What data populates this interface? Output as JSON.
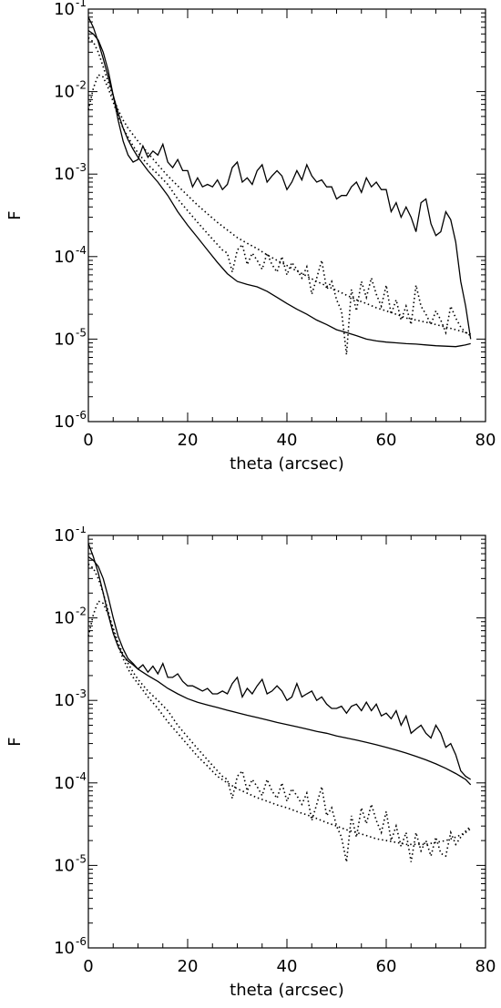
{
  "chart_data": [
    {
      "type": "line",
      "title": "",
      "xlabel": "theta (arcsec)",
      "ylabel": "F",
      "xlim": [
        0,
        80
      ],
      "ylim": [
        1e-06,
        0.1
      ],
      "yscale": "log",
      "x_ticks": [
        "0",
        "20",
        "40",
        "60",
        "80"
      ],
      "y_ticks": [
        {
          "base": "10",
          "exp": "-6"
        },
        {
          "base": "10",
          "exp": "-5"
        },
        {
          "base": "10",
          "exp": "-4"
        },
        {
          "base": "10",
          "exp": "-3"
        },
        {
          "base": "10",
          "exp": "-2"
        },
        {
          "base": "10",
          "exp": "-1"
        }
      ],
      "grid": false,
      "series": [
        {
          "style": "solid",
          "x": [
            0,
            1,
            2,
            3,
            4,
            5,
            6,
            7,
            8,
            9,
            10,
            11,
            12,
            13,
            14,
            15,
            16,
            17,
            18,
            19,
            20,
            21,
            22,
            23,
            24,
            25,
            26,
            27,
            28,
            29,
            30,
            31,
            32,
            33,
            34,
            35,
            36,
            37,
            38,
            39,
            40,
            41,
            42,
            43,
            44,
            45,
            46,
            47,
            48,
            49,
            50,
            51,
            52,
            53,
            54,
            55,
            56,
            57,
            58,
            59,
            60,
            61,
            62,
            63,
            64,
            65,
            66,
            67,
            68,
            69,
            70,
            71,
            72,
            73,
            74,
            75,
            76,
            77
          ],
          "y": [
            0.055,
            0.05,
            0.042,
            0.03,
            0.018,
            0.009,
            0.0045,
            0.0025,
            0.0017,
            0.0014,
            0.0015,
            0.0022,
            0.0016,
            0.0019,
            0.0017,
            0.0023,
            0.0014,
            0.0012,
            0.0015,
            0.0011,
            0.0011,
            0.0007,
            0.0009,
            0.0007,
            0.00075,
            0.0007,
            0.00085,
            0.00065,
            0.00075,
            0.0012,
            0.0014,
            0.0008,
            0.0009,
            0.00075,
            0.0011,
            0.0013,
            0.0008,
            0.00095,
            0.0011,
            0.00095,
            0.00065,
            0.0008,
            0.0011,
            0.00085,
            0.0013,
            0.00095,
            0.0008,
            0.00085,
            0.0007,
            0.0007,
            0.0005,
            0.00055,
            0.00055,
            0.0007,
            0.0008,
            0.0006,
            0.0009,
            0.0007,
            0.0008,
            0.00065,
            0.00065,
            0.00035,
            0.00045,
            0.0003,
            0.0004,
            0.0003,
            0.0002,
            0.00045,
            0.0005,
            0.00025,
            0.00018,
            0.0002,
            0.00035,
            0.00028,
            0.00015,
            5e-05,
            2.5e-05,
            1e-05
          ]
        },
        {
          "style": "solid",
          "x": [
            0,
            1,
            2,
            3,
            4,
            5,
            6,
            7,
            8,
            9,
            10,
            12,
            14,
            16,
            18,
            20,
            22,
            24,
            26,
            28,
            30,
            32,
            34,
            36,
            38,
            40,
            42,
            44,
            46,
            48,
            50,
            52,
            54,
            56,
            58,
            60,
            62,
            64,
            66,
            68,
            70,
            72,
            74,
            76,
            77
          ],
          "y": [
            0.08,
            0.06,
            0.04,
            0.025,
            0.015,
            0.009,
            0.0055,
            0.0036,
            0.0026,
            0.002,
            0.0016,
            0.0011,
            0.0008,
            0.00055,
            0.00035,
            0.00024,
            0.00017,
            0.00012,
            8.5e-05,
            6.2e-05,
            5e-05,
            4.6e-05,
            4.3e-05,
            3.8e-05,
            3.2e-05,
            2.7e-05,
            2.3e-05,
            2e-05,
            1.7e-05,
            1.5e-05,
            1.3e-05,
            1.2e-05,
            1.1e-05,
            1e-05,
            9.5e-06,
            9.2e-06,
            9e-06,
            8.8e-06,
            8.7e-06,
            8.5e-06,
            8.3e-06,
            8.2e-06,
            8.1e-06,
            8.5e-06,
            8.8e-06
          ]
        },
        {
          "style": "dotted",
          "x": [
            0,
            1,
            2,
            3,
            4,
            5,
            6,
            7,
            8,
            9,
            10,
            12,
            14,
            16,
            18,
            20,
            22,
            24,
            26,
            27,
            28,
            29,
            30,
            31,
            32,
            33,
            34,
            35,
            36,
            37,
            38,
            39,
            40,
            41,
            42,
            43,
            44,
            45,
            46,
            47,
            48,
            49,
            50,
            51,
            52,
            53,
            54,
            55,
            56,
            57,
            58,
            59,
            60,
            61,
            62,
            63,
            64,
            65,
            66,
            67,
            68,
            69,
            70,
            71,
            72,
            73,
            74,
            75,
            76,
            77
          ],
          "y": [
            0.006,
            0.011,
            0.016,
            0.015,
            0.011,
            0.0075,
            0.005,
            0.0036,
            0.0028,
            0.0022,
            0.0018,
            0.0013,
            0.001,
            0.00075,
            0.0005,
            0.00036,
            0.00026,
            0.00019,
            0.00014,
            0.00012,
            0.00011,
            6.5e-05,
            0.00012,
            0.00014,
            8e-05,
            0.00011,
            9e-05,
            7e-05,
            0.00011,
            8e-05,
            6.5e-05,
            0.0001,
            6e-05,
            8.5e-05,
            7e-05,
            5.5e-05,
            7.5e-05,
            3.5e-05,
            5.5e-05,
            9e-05,
            4e-05,
            5e-05,
            3e-05,
            2.2e-05,
            6.5e-06,
            4e-05,
            2.2e-05,
            5e-05,
            3.2e-05,
            5.5e-05,
            3.5e-05,
            2.5e-05,
            4.5e-05,
            2e-05,
            3e-05,
            1.7e-05,
            2.5e-05,
            1.5e-05,
            4.5e-05,
            2.5e-05,
            2e-05,
            1.5e-05,
            2.2e-05,
            1.7e-05,
            1.2e-05,
            2.5e-05,
            1.8e-05,
            1.4e-05,
            1.2e-05,
            1.1e-05
          ]
        },
        {
          "style": "dotted",
          "x": [
            0,
            1,
            2,
            3,
            4,
            5,
            6,
            7,
            8,
            9,
            10,
            12,
            14,
            16,
            18,
            20,
            22,
            24,
            26,
            28,
            30,
            32,
            34,
            36,
            38,
            40,
            42,
            44,
            46,
            48,
            50,
            52,
            54,
            56,
            58,
            60,
            62,
            64,
            66,
            68,
            70,
            72,
            74,
            76,
            77
          ],
          "y": [
            0.045,
            0.04,
            0.03,
            0.02,
            0.013,
            0.0085,
            0.006,
            0.0045,
            0.0036,
            0.003,
            0.0025,
            0.0018,
            0.0013,
            0.00095,
            0.00072,
            0.00055,
            0.00042,
            0.00033,
            0.00026,
            0.00021,
            0.00017,
            0.000145,
            0.000125,
            0.000105,
            9e-05,
            7.8e-05,
            6.7e-05,
            5.8e-05,
            5e-05,
            4.4e-05,
            3.9e-05,
            3.4e-05,
            3e-05,
            2.7e-05,
            2.4e-05,
            2.2e-05,
            2e-05,
            1.8e-05,
            1.7e-05,
            1.6e-05,
            1.5e-05,
            1.4e-05,
            1.3e-05,
            1.2e-05,
            1.15e-05
          ]
        }
      ]
    },
    {
      "type": "line",
      "title": "",
      "xlabel": "theta (arcsec)",
      "ylabel": "F",
      "xlim": [
        0,
        80
      ],
      "ylim": [
        1e-06,
        0.1
      ],
      "yscale": "log",
      "x_ticks": [
        "0",
        "20",
        "40",
        "60",
        "80"
      ],
      "y_ticks": [
        {
          "base": "10",
          "exp": "-6"
        },
        {
          "base": "10",
          "exp": "-5"
        },
        {
          "base": "10",
          "exp": "-4"
        },
        {
          "base": "10",
          "exp": "-3"
        },
        {
          "base": "10",
          "exp": "-2"
        },
        {
          "base": "10",
          "exp": "-1"
        }
      ],
      "grid": false,
      "series": [
        {
          "style": "solid",
          "x": [
            0,
            1,
            2,
            3,
            4,
            5,
            6,
            7,
            8,
            9,
            10,
            11,
            12,
            13,
            14,
            15,
            16,
            17,
            18,
            19,
            20,
            21,
            22,
            23,
            24,
            25,
            26,
            27,
            28,
            29,
            30,
            31,
            32,
            33,
            34,
            35,
            36,
            37,
            38,
            39,
            40,
            41,
            42,
            43,
            44,
            45,
            46,
            47,
            48,
            49,
            50,
            51,
            52,
            53,
            54,
            55,
            56,
            57,
            58,
            59,
            60,
            61,
            62,
            63,
            64,
            65,
            66,
            67,
            68,
            69,
            70,
            71,
            72,
            73,
            74,
            75,
            76,
            77
          ],
          "y": [
            0.055,
            0.05,
            0.042,
            0.03,
            0.018,
            0.01,
            0.006,
            0.0042,
            0.0032,
            0.0028,
            0.0024,
            0.0027,
            0.0022,
            0.0026,
            0.0021,
            0.0028,
            0.0019,
            0.0019,
            0.0021,
            0.0017,
            0.0015,
            0.0015,
            0.0014,
            0.0013,
            0.0014,
            0.0012,
            0.0012,
            0.0013,
            0.0012,
            0.0016,
            0.0019,
            0.0011,
            0.0014,
            0.0012,
            0.0015,
            0.0018,
            0.0012,
            0.0013,
            0.0015,
            0.0013,
            0.001,
            0.0011,
            0.0016,
            0.0011,
            0.0012,
            0.0013,
            0.001,
            0.0011,
            0.0009,
            0.0008,
            0.0008,
            0.00085,
            0.0007,
            0.00085,
            0.0009,
            0.00075,
            0.00095,
            0.00075,
            0.0009,
            0.00065,
            0.0007,
            0.0006,
            0.00075,
            0.0005,
            0.00065,
            0.0004,
            0.00045,
            0.0005,
            0.0004,
            0.00035,
            0.0005,
            0.0004,
            0.00027,
            0.0003,
            0.00022,
            0.00014,
            0.00012,
            0.00011
          ]
        },
        {
          "style": "solid",
          "x": [
            0,
            1,
            2,
            3,
            4,
            5,
            6,
            7,
            8,
            9,
            10,
            12,
            14,
            16,
            18,
            20,
            22,
            24,
            26,
            28,
            30,
            32,
            34,
            36,
            38,
            40,
            42,
            44,
            46,
            48,
            50,
            52,
            54,
            56,
            58,
            60,
            62,
            64,
            66,
            68,
            70,
            72,
            74,
            76,
            77
          ],
          "y": [
            0.08,
            0.055,
            0.035,
            0.02,
            0.011,
            0.0065,
            0.0045,
            0.0035,
            0.003,
            0.0027,
            0.0024,
            0.002,
            0.0017,
            0.0014,
            0.0012,
            0.00105,
            0.00095,
            0.00088,
            0.00082,
            0.00076,
            0.00071,
            0.00066,
            0.00062,
            0.00058,
            0.00054,
            0.00051,
            0.00048,
            0.00045,
            0.00042,
            0.0004,
            0.00037,
            0.00035,
            0.00033,
            0.00031,
            0.00029,
            0.00027,
            0.00025,
            0.00023,
            0.00021,
            0.00019,
            0.00017,
            0.00015,
            0.00013,
            0.00011,
            9.5e-05
          ]
        },
        {
          "style": "dotted",
          "x": [
            0,
            1,
            2,
            3,
            4,
            5,
            6,
            7,
            8,
            9,
            10,
            12,
            14,
            16,
            18,
            20,
            22,
            24,
            26,
            27,
            28,
            29,
            30,
            31,
            32,
            33,
            34,
            35,
            36,
            37,
            38,
            39,
            40,
            41,
            42,
            43,
            44,
            45,
            46,
            47,
            48,
            49,
            50,
            51,
            52,
            53,
            54,
            55,
            56,
            57,
            58,
            59,
            60,
            61,
            62,
            63,
            64,
            65,
            66,
            67,
            68,
            69,
            70,
            71,
            72,
            73,
            74,
            75,
            76,
            77
          ],
          "y": [
            0.006,
            0.011,
            0.016,
            0.015,
            0.011,
            0.0075,
            0.005,
            0.0036,
            0.0028,
            0.0022,
            0.0018,
            0.0013,
            0.001,
            0.00075,
            0.0005,
            0.00036,
            0.00026,
            0.00019,
            0.00014,
            0.00012,
            0.00011,
            6.5e-05,
            0.00012,
            0.00014,
            8e-05,
            0.00011,
            9e-05,
            7e-05,
            0.00011,
            8e-05,
            6.5e-05,
            0.0001,
            6e-05,
            8.5e-05,
            7e-05,
            5.5e-05,
            7.5e-05,
            3.5e-05,
            5.5e-05,
            9e-05,
            4e-05,
            5e-05,
            3e-05,
            2.2e-05,
            1.1e-05,
            4e-05,
            2.2e-05,
            5e-05,
            3.2e-05,
            5.5e-05,
            3.5e-05,
            2.5e-05,
            4.5e-05,
            2e-05,
            3e-05,
            1.7e-05,
            2.5e-05,
            1.1e-05,
            2.5e-05,
            1.5e-05,
            2e-05,
            1.3e-05,
            2.2e-05,
            1.4e-05,
            1.3e-05,
            2.5e-05,
            1.8e-05,
            2.2e-05,
            2.6e-05,
            3e-05
          ]
        },
        {
          "style": "dotted",
          "x": [
            0,
            1,
            2,
            3,
            4,
            5,
            6,
            7,
            8,
            9,
            10,
            12,
            14,
            16,
            18,
            20,
            22,
            24,
            26,
            28,
            30,
            32,
            34,
            36,
            38,
            40,
            42,
            44,
            46,
            48,
            50,
            52,
            54,
            56,
            58,
            60,
            62,
            64,
            66,
            68,
            70,
            72,
            74,
            76,
            77
          ],
          "y": [
            0.045,
            0.04,
            0.03,
            0.02,
            0.012,
            0.007,
            0.0045,
            0.0032,
            0.0024,
            0.0019,
            0.0016,
            0.0011,
            0.0008,
            0.00055,
            0.0004,
            0.00029,
            0.00021,
            0.00016,
            0.00012,
            0.0001,
            8.5e-05,
            7.5e-05,
            6.6e-05,
            6e-05,
            5.4e-05,
            5e-05,
            4.5e-05,
            4.1e-05,
            3.7e-05,
            3.3e-05,
            3e-05,
            2.7e-05,
            2.5e-05,
            2.3e-05,
            2.1e-05,
            2e-05,
            1.9e-05,
            1.8e-05,
            1.8e-05,
            1.8e-05,
            1.9e-05,
            2e-05,
            2.2e-05,
            2.5e-05,
            2.8e-05
          ]
        }
      ]
    }
  ]
}
